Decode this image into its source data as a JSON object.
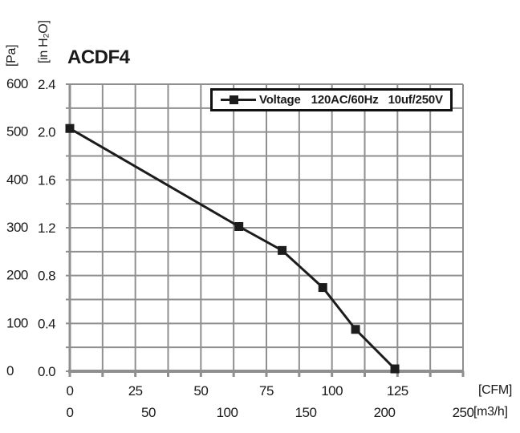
{
  "page": {
    "background": "#ffffff",
    "title": "ACDF4"
  },
  "colors": {
    "grid": "#8f8f8f",
    "axis": "#8f8f8f",
    "series_line": "#1c1c1c",
    "marker_fill": "#1c1c1c",
    "text": "#1a1a1a",
    "legend_border": "#111111",
    "legend_bg": "#ffffff"
  },
  "legend": {
    "label": "Voltage",
    "value1": "120AC/60Hz",
    "value2": "10uf/250V"
  },
  "axis_units": {
    "y_primary": "[Pa]",
    "y_secondary": "[in H₂O]",
    "x_primary": "[CFM]",
    "x_secondary": "[m3/h]"
  },
  "chart_data": {
    "type": "line",
    "title": "ACDF4",
    "series": [
      {
        "name": "Voltage 120AC/60Hz 10uf/250V",
        "marker": "filled-square",
        "x_cfm": [
          0,
          64.5,
          81,
          96.5,
          109,
          124
        ],
        "y_in_h2o": [
          2.03,
          1.21,
          1.01,
          0.7,
          0.35,
          0.02
        ],
        "y_pa_approx": [
          505,
          301,
          251,
          174,
          87,
          5
        ]
      }
    ],
    "x_axis": {
      "primary": {
        "label": "[CFM]",
        "ticks": [
          "0",
          "25",
          "50",
          "75",
          "100",
          "125"
        ],
        "tick_values": [
          0,
          25,
          50,
          75,
          100,
          125
        ],
        "range": [
          0,
          150
        ]
      },
      "secondary": {
        "label": "[m3/h]",
        "ticks": [
          "0",
          "50",
          "100",
          "150",
          "200",
          "250"
        ],
        "tick_values": [
          0,
          50,
          100,
          150,
          200,
          250
        ],
        "range": [
          0,
          250
        ]
      }
    },
    "y_axis": {
      "primary": {
        "label": "[Pa]",
        "ticks": [
          "600",
          "500",
          "400",
          "300",
          "200",
          "100",
          "0"
        ],
        "tick_values": [
          600,
          500,
          400,
          300,
          200,
          100,
          0
        ],
        "range": [
          0,
          600
        ]
      },
      "secondary": {
        "label": "[in H₂O]",
        "ticks": [
          "2.4",
          "2.0",
          "1.6",
          "1.2",
          "0.8",
          "0.4",
          "0.0"
        ],
        "tick_values": [
          2.4,
          2.0,
          1.6,
          1.2,
          0.8,
          0.4,
          0.0
        ],
        "range": [
          0,
          2.4
        ]
      }
    },
    "grid": {
      "on": true,
      "x_minor_step_cfm": 12.5,
      "y_minor_step_in_h2o": 0.2
    },
    "legend": {
      "position": "top-right-inside",
      "entries": [
        "Voltage 120AC/60Hz 10uf/250V"
      ]
    }
  }
}
